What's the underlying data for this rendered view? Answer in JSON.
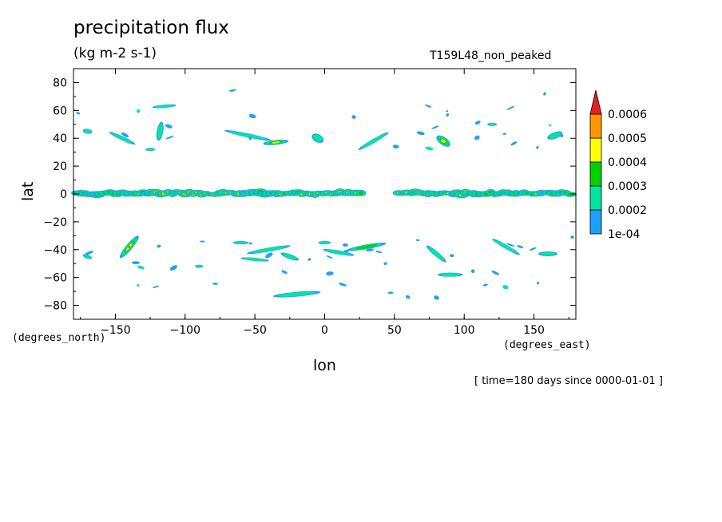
{
  "chart_data": {
    "type": "heatmap",
    "title": "precipitation flux",
    "units": "(kg m-2 s-1)",
    "run_label": "T159L48_non_peaked",
    "xlabel": "lon",
    "ylabel": "lat",
    "x_units": "(degrees_east)",
    "y_units": "(degrees_north)",
    "time_note": "[ time=180 days since 0000-01-01 ]",
    "xlim": [
      -180,
      180
    ],
    "ylim": [
      -90,
      90
    ],
    "x_ticks": [
      -150,
      -100,
      -50,
      0,
      50,
      100,
      150
    ],
    "y_ticks": [
      80,
      60,
      40,
      20,
      0,
      -20,
      -40,
      -60,
      -80
    ],
    "x_tick_labels": [
      "−150",
      "−100",
      "−50",
      "0",
      "50",
      "100",
      "150"
    ],
    "y_tick_labels": [
      "80",
      "60",
      "40",
      "20",
      "0",
      "−20",
      "−40",
      "−60",
      "−80"
    ],
    "colorbar": {
      "levels": [
        "1e-04",
        "0.0002",
        "0.0003",
        "0.0004",
        "0.0005",
        "0.0006"
      ],
      "colors": [
        "#1ea0ff",
        "#00e6a0",
        "#00d200",
        "#ffff00",
        "#ff9600",
        "#e61e1e"
      ]
    },
    "features": [
      {
        "name": "itcz-band",
        "lat": [
          -3,
          4
        ],
        "lon": [
          -180,
          180
        ],
        "max_level": "0.0006"
      },
      {
        "name": "storm-track-north",
        "lat": [
          30,
          60
        ],
        "lon": [
          -180,
          180
        ],
        "max_level": "0.0005"
      },
      {
        "name": "storm-track-south",
        "lat": [
          -60,
          -30
        ],
        "lon": [
          -180,
          180
        ],
        "max_level": "0.0006"
      }
    ]
  }
}
